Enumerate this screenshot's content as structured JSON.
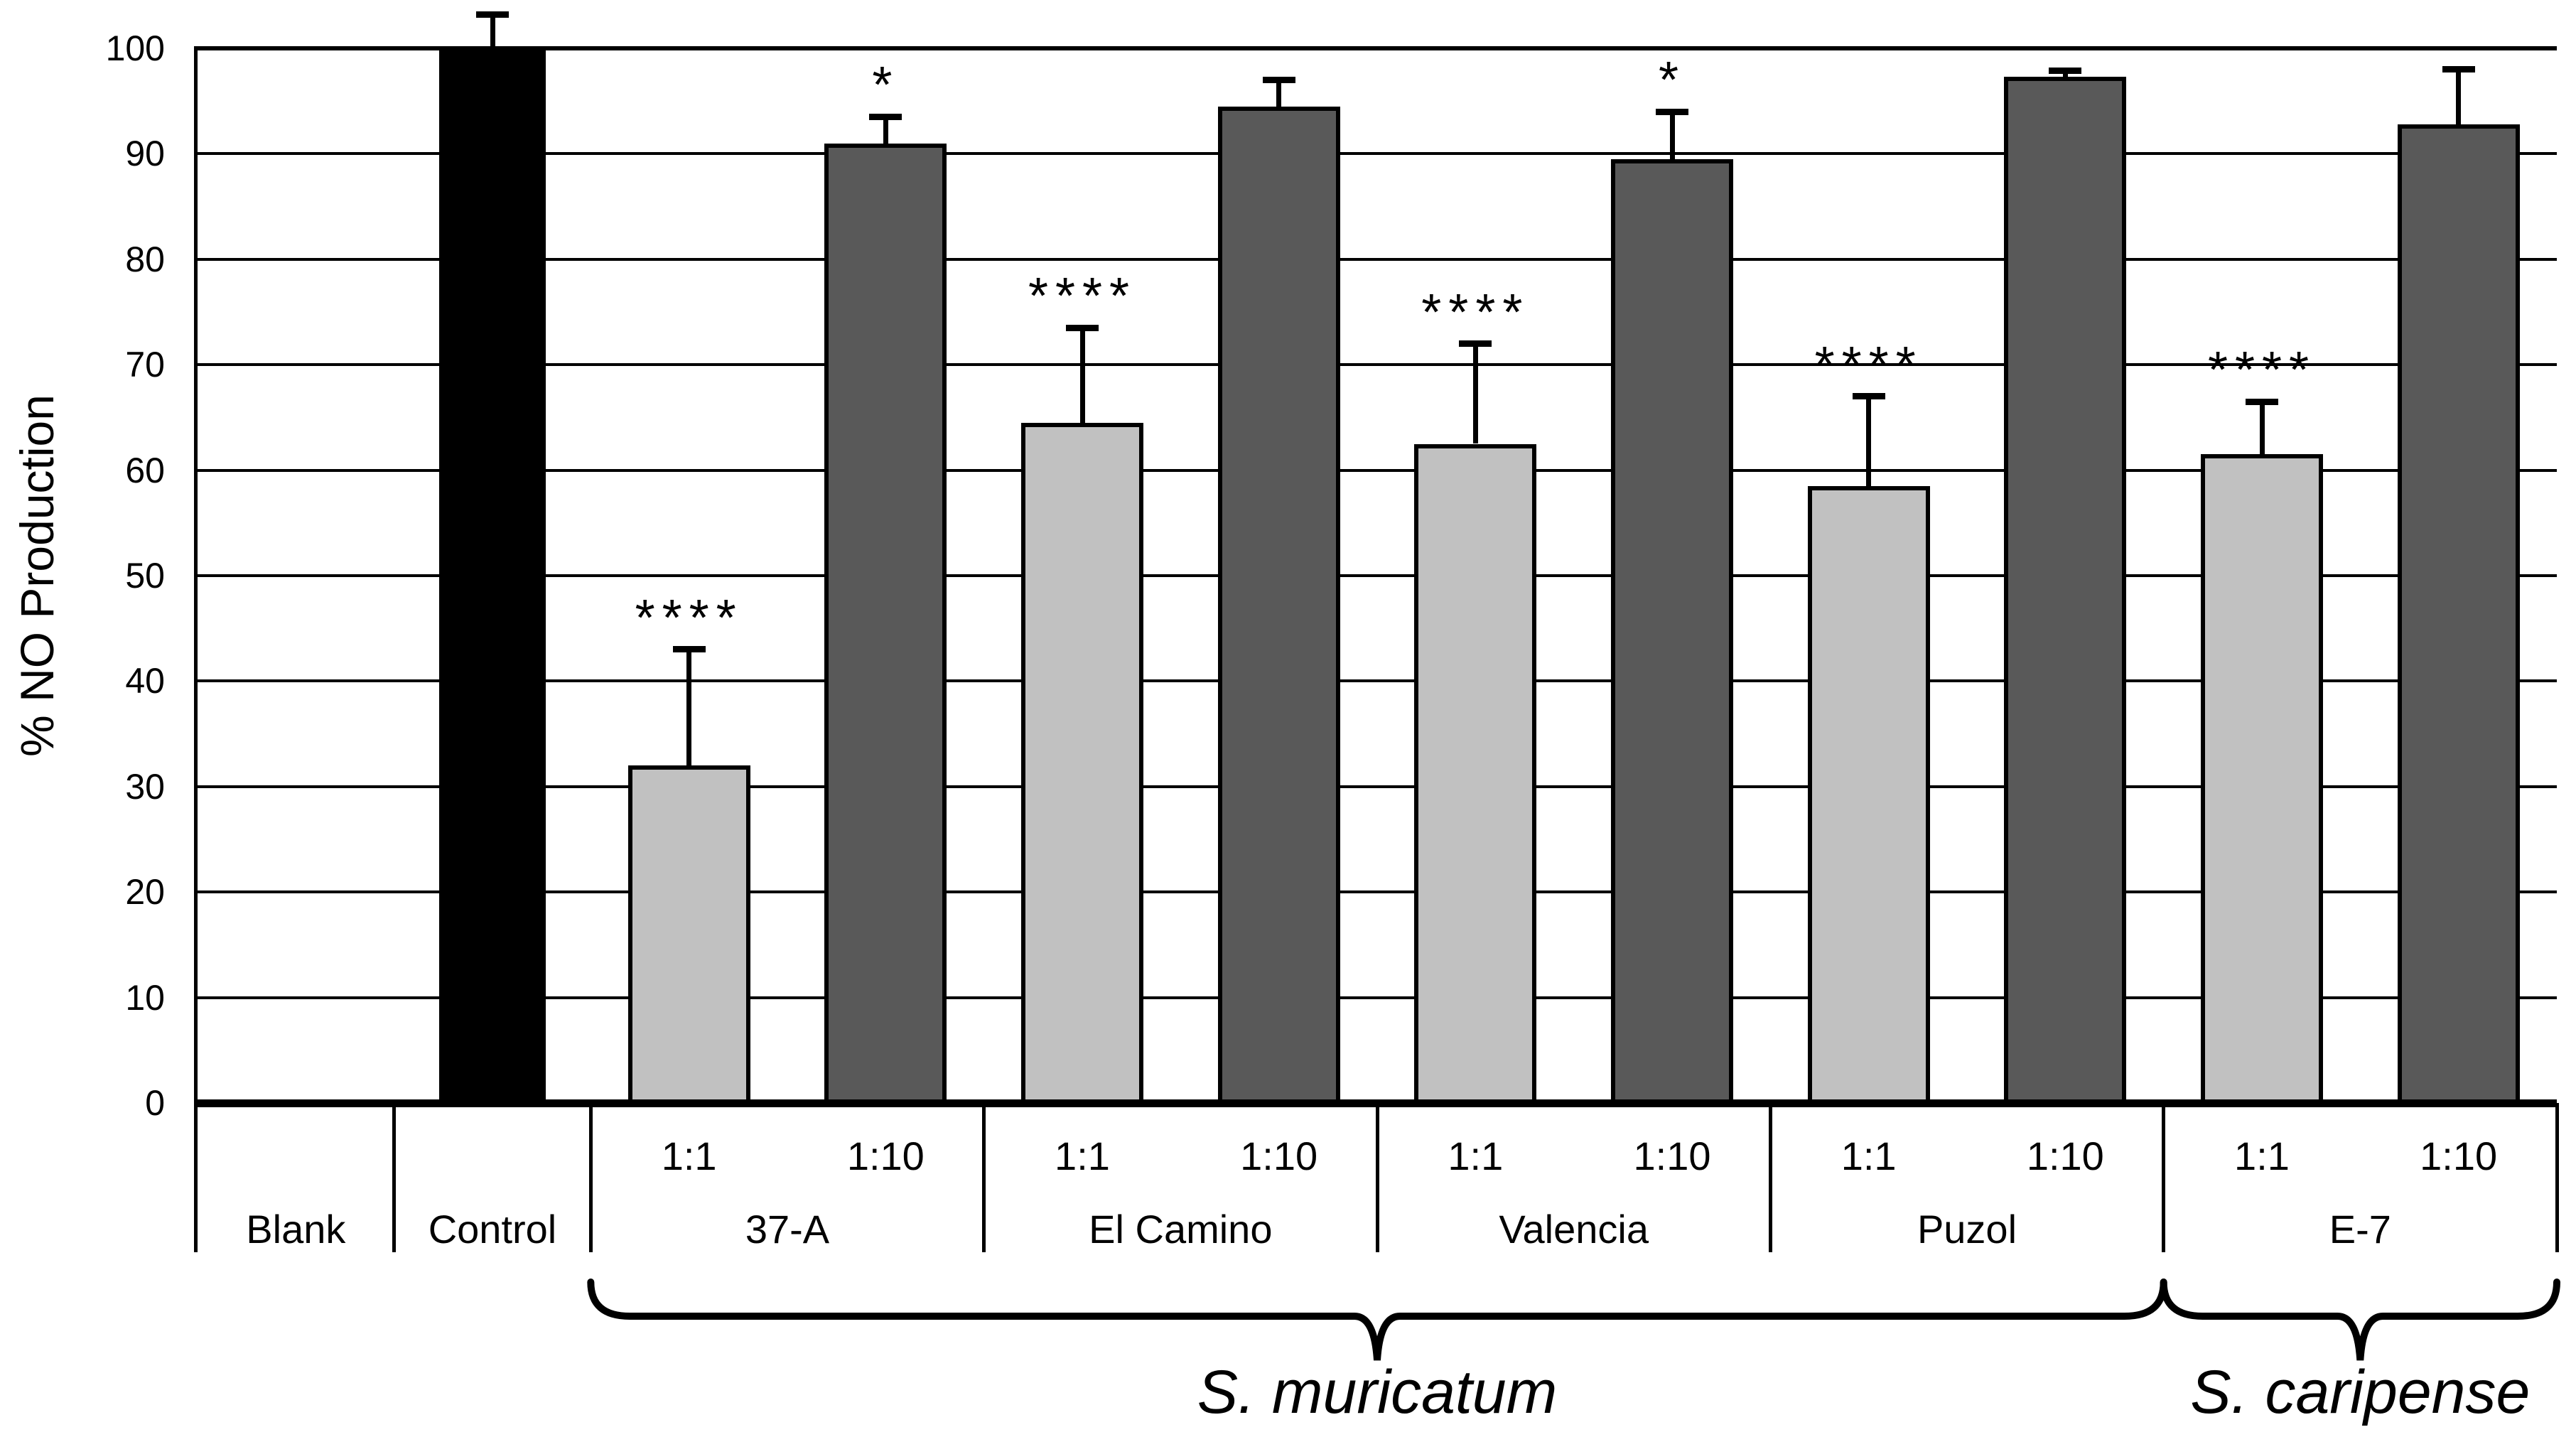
{
  "chart_data": {
    "type": "bar",
    "title": "",
    "ylabel": "% NO Production",
    "xlabel": "",
    "ylim": [
      0,
      100
    ],
    "ytick_step": 10,
    "grid": "horizontal",
    "legend": "none",
    "bar_colors": {
      "control": "#000000",
      "ratio_1_1": "#c1c1c1",
      "ratio_1_10": "#595959"
    },
    "groups": [
      {
        "label": "Blank",
        "bars": []
      },
      {
        "label": "Control",
        "bars": [
          {
            "dilution": "",
            "value": 100,
            "error": 3.2,
            "color_key": "control",
            "sig": ""
          }
        ]
      },
      {
        "label": "37-A",
        "bars": [
          {
            "dilution": "1:1",
            "value": 32,
            "error": 11,
            "color_key": "ratio_1_1",
            "sig": "****"
          },
          {
            "dilution": "1:10",
            "value": 91,
            "error": 2.5,
            "color_key": "ratio_1_10",
            "sig": "*"
          }
        ]
      },
      {
        "label": "El Camino",
        "bars": [
          {
            "dilution": "1:1",
            "value": 64.5,
            "error": 9,
            "color_key": "ratio_1_1",
            "sig": "****"
          },
          {
            "dilution": "1:10",
            "value": 94.5,
            "error": 2.5,
            "color_key": "ratio_1_10",
            "sig": ""
          }
        ]
      },
      {
        "label": "Valencia",
        "bars": [
          {
            "dilution": "1:1",
            "value": 62.5,
            "error": 9.5,
            "color_key": "ratio_1_1",
            "sig": "****"
          },
          {
            "dilution": "1:10",
            "value": 89.5,
            "error": 4.5,
            "color_key": "ratio_1_10",
            "sig": "*"
          }
        ]
      },
      {
        "label": "Puzol",
        "bars": [
          {
            "dilution": "1:1",
            "value": 58.5,
            "error": 8.5,
            "color_key": "ratio_1_1",
            "sig": "****"
          },
          {
            "dilution": "1:10",
            "value": 97.3,
            "error": 0.6,
            "color_key": "ratio_1_10",
            "sig": ""
          }
        ]
      },
      {
        "label": "E-7",
        "bars": [
          {
            "dilution": "1:1",
            "value": 61.5,
            "error": 5,
            "color_key": "ratio_1_1",
            "sig": "****"
          },
          {
            "dilution": "1:10",
            "value": 92.8,
            "error": 5.2,
            "color_key": "ratio_1_10",
            "sig": ""
          }
        ]
      }
    ],
    "species_brackets": [
      {
        "label": "S. muricatum",
        "groups": [
          "37-A",
          "El Camino",
          "Valencia",
          "Puzol"
        ]
      },
      {
        "label": "S. caripense",
        "groups": [
          "E-7"
        ]
      }
    ]
  }
}
